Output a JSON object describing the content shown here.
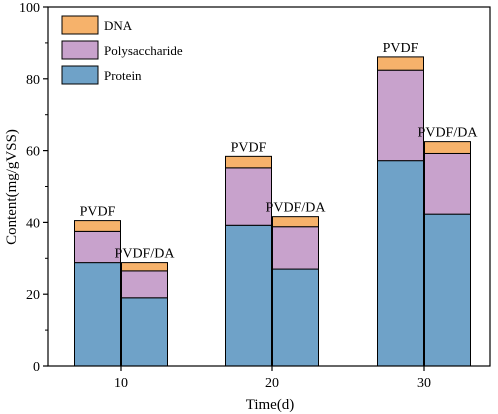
{
  "chart_data": {
    "type": "bar",
    "stacked": true,
    "title": "",
    "xlabel": "Time(d)",
    "ylabel": "Content(mg/gVSS)",
    "ylim": [
      0,
      100
    ],
    "yticks": [
      0,
      20,
      40,
      60,
      80,
      100
    ],
    "categories": [
      "10",
      "20",
      "30"
    ],
    "groups": [
      "PVDF",
      "PVDF/DA"
    ],
    "grid": false,
    "legend": {
      "position": "top-left",
      "entries": [
        "DNA",
        "Polysaccharide",
        "Protein"
      ]
    },
    "series": [
      {
        "name": "Protein",
        "color": "#6fa2c8",
        "values": {
          "PVDF": [
            28.8,
            39.2,
            57.2
          ],
          "PVDF/DA": [
            19.0,
            27.0,
            42.3
          ]
        }
      },
      {
        "name": "Polysaccharide",
        "color": "#c8a2cc",
        "values": {
          "PVDF": [
            8.7,
            16.0,
            25.2
          ],
          "PVDF/DA": [
            7.5,
            11.8,
            16.9
          ]
        }
      },
      {
        "name": "DNA",
        "color": "#f6b26b",
        "values": {
          "PVDF": [
            3.0,
            3.2,
            3.7
          ],
          "PVDF/DA": [
            2.3,
            2.8,
            3.3
          ]
        }
      }
    ],
    "bar_labels": {
      "PVDF": "PVDF",
      "PVDF/DA": "PVDF/DA"
    }
  }
}
